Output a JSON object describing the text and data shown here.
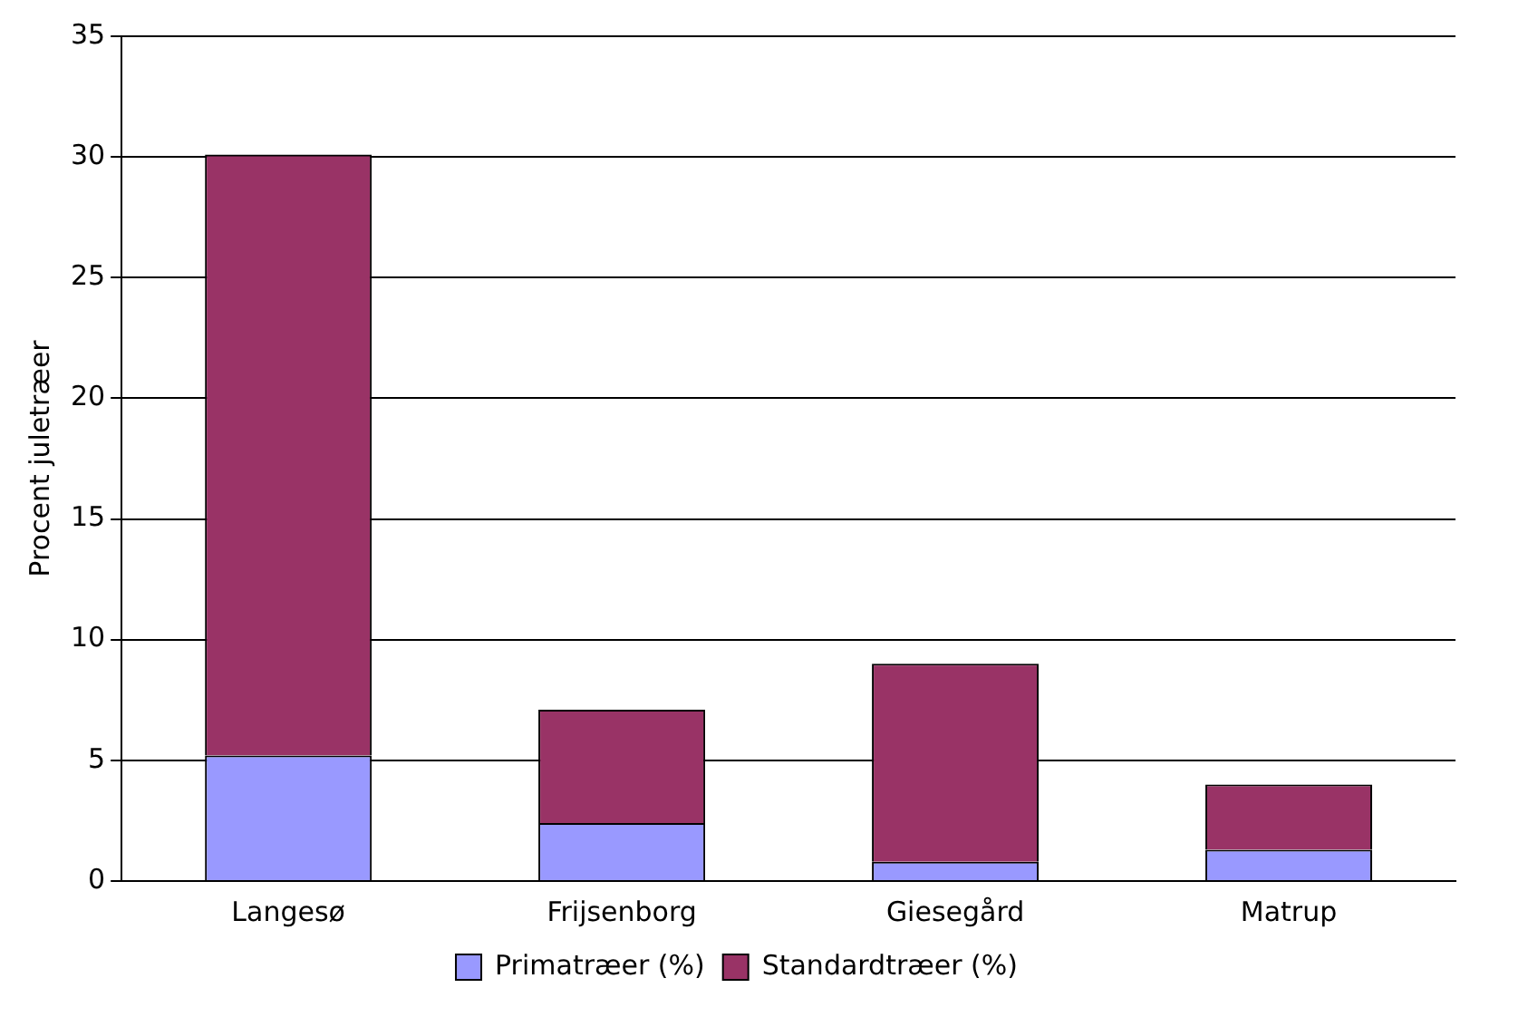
{
  "chart_data": {
    "type": "bar",
    "stacked": true,
    "ylabel": "Procent juletræer",
    "categories": [
      "Langesø",
      "Frijsenborg",
      "Giesegård",
      "Matrup"
    ],
    "series": [
      {
        "name": "Primatræer (%)",
        "color": "#9999ff",
        "values": [
          5.2,
          2.4,
          0.8,
          1.3
        ]
      },
      {
        "name": "Standardtræer (%)",
        "color": "#993366",
        "values": [
          24.9,
          4.7,
          8.2,
          2.7
        ]
      }
    ],
    "ylim": [
      0,
      35
    ],
    "yticks": [
      0,
      5,
      10,
      15,
      20,
      25,
      30,
      35
    ],
    "grid": "y",
    "legend": "bottom"
  }
}
